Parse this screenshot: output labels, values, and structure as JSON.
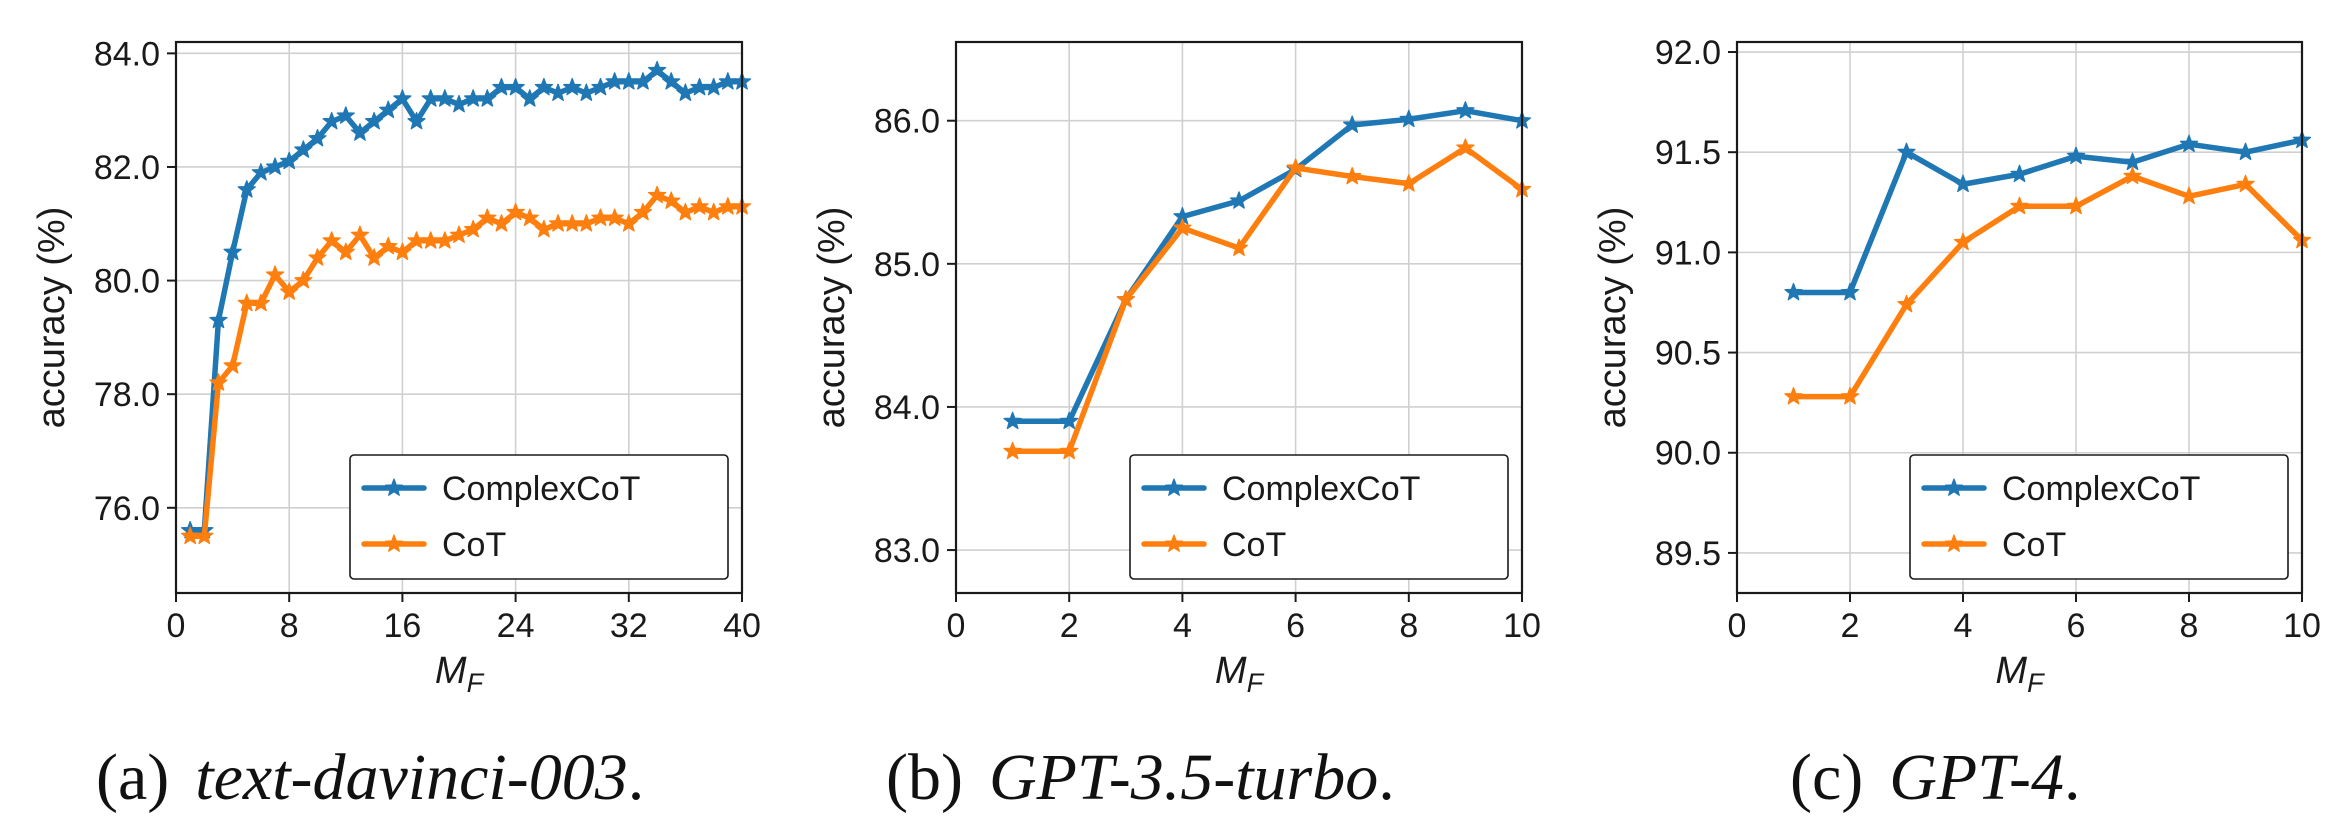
{
  "chart_data": [
    {
      "type": "line",
      "caption": {
        "tag": "(a)",
        "model": "text-davinci-003",
        "end": "."
      },
      "xlabel": "M_F",
      "ylabel": "accuracy (%)",
      "xlim": [
        0,
        40
      ],
      "ylim": [
        74.5,
        84.2
      ],
      "xticks": [
        0,
        8,
        16,
        24,
        32,
        40
      ],
      "yticks": [
        76.0,
        78.0,
        80.0,
        82.0,
        84.0
      ],
      "ytick_decimals": 1,
      "grid": true,
      "legend": {
        "position": "lower-right"
      },
      "series": [
        {
          "name": "ComplexCoT",
          "color": "#1f77b4",
          "x": [
            1,
            2,
            3,
            4,
            5,
            6,
            7,
            8,
            9,
            10,
            11,
            12,
            13,
            14,
            15,
            16,
            17,
            18,
            19,
            20,
            21,
            22,
            23,
            24,
            25,
            26,
            27,
            28,
            29,
            30,
            31,
            32,
            33,
            34,
            35,
            36,
            37,
            38,
            39,
            40
          ],
          "y": [
            75.6,
            75.6,
            79.3,
            80.5,
            81.6,
            81.9,
            82.0,
            82.1,
            82.3,
            82.5,
            82.8,
            82.9,
            82.6,
            82.8,
            83.0,
            83.2,
            82.8,
            83.2,
            83.2,
            83.1,
            83.2,
            83.2,
            83.4,
            83.4,
            83.2,
            83.4,
            83.3,
            83.4,
            83.3,
            83.4,
            83.5,
            83.5,
            83.5,
            83.7,
            83.5,
            83.3,
            83.4,
            83.4,
            83.5,
            83.5
          ]
        },
        {
          "name": "CoT",
          "color": "#ff7f0e",
          "x": [
            1,
            2,
            3,
            4,
            5,
            6,
            7,
            8,
            9,
            10,
            11,
            12,
            13,
            14,
            15,
            16,
            17,
            18,
            19,
            20,
            21,
            22,
            23,
            24,
            25,
            26,
            27,
            28,
            29,
            30,
            31,
            32,
            33,
            34,
            35,
            36,
            37,
            38,
            39,
            40
          ],
          "y": [
            75.5,
            75.5,
            78.2,
            78.5,
            79.6,
            79.6,
            80.1,
            79.8,
            80.0,
            80.4,
            80.7,
            80.5,
            80.8,
            80.4,
            80.6,
            80.5,
            80.7,
            80.7,
            80.7,
            80.8,
            80.9,
            81.1,
            81.0,
            81.2,
            81.1,
            80.9,
            81.0,
            81.0,
            81.0,
            81.1,
            81.1,
            81.0,
            81.2,
            81.5,
            81.4,
            81.2,
            81.3,
            81.2,
            81.3,
            81.3
          ]
        }
      ]
    },
    {
      "type": "line",
      "caption": {
        "tag": "(b)",
        "model": "GPT-3.5-turbo",
        "end": "."
      },
      "xlabel": "M_F",
      "ylabel": "accuracy (%)",
      "xlim": [
        0,
        10
      ],
      "ylim": [
        82.7,
        86.55
      ],
      "xticks": [
        0,
        2,
        4,
        6,
        8,
        10
      ],
      "yticks": [
        83.0,
        84.0,
        85.0,
        86.0
      ],
      "ytick_decimals": 1,
      "grid": true,
      "legend": {
        "position": "lower-right"
      },
      "series": [
        {
          "name": "ComplexCoT",
          "color": "#1f77b4",
          "x": [
            1,
            2,
            3,
            4,
            5,
            6,
            7,
            8,
            9,
            10
          ],
          "y": [
            83.9,
            83.9,
            84.75,
            85.33,
            85.44,
            85.66,
            85.97,
            86.01,
            86.07,
            86.0
          ]
        },
        {
          "name": "CoT",
          "color": "#ff7f0e",
          "x": [
            1,
            2,
            3,
            4,
            5,
            6,
            7,
            8,
            9,
            10
          ],
          "y": [
            83.69,
            83.69,
            84.75,
            85.25,
            85.11,
            85.67,
            85.61,
            85.56,
            85.81,
            85.52
          ]
        }
      ]
    },
    {
      "type": "line",
      "caption": {
        "tag": "(c)",
        "model": "GPT-4",
        "end": "."
      },
      "xlabel": "M_F",
      "ylabel": "accuracy (%)",
      "xlim": [
        0,
        10
      ],
      "ylim": [
        89.3,
        92.05
      ],
      "xticks": [
        0,
        2,
        4,
        6,
        8,
        10
      ],
      "yticks": [
        89.5,
        90.0,
        90.5,
        91.0,
        91.5,
        92.0
      ],
      "ytick_decimals": 1,
      "grid": true,
      "legend": {
        "position": "lower-right"
      },
      "series": [
        {
          "name": "ComplexCoT",
          "color": "#1f77b4",
          "x": [
            1,
            2,
            3,
            4,
            5,
            6,
            7,
            8,
            9,
            10
          ],
          "y": [
            90.8,
            90.8,
            91.5,
            91.34,
            91.39,
            91.48,
            91.45,
            91.54,
            91.5,
            91.56
          ]
        },
        {
          "name": "CoT",
          "color": "#ff7f0e",
          "x": [
            1,
            2,
            3,
            4,
            5,
            6,
            7,
            8,
            9,
            10
          ],
          "y": [
            90.28,
            90.28,
            90.74,
            91.05,
            91.23,
            91.23,
            91.38,
            91.28,
            91.34,
            91.06
          ]
        }
      ]
    }
  ]
}
